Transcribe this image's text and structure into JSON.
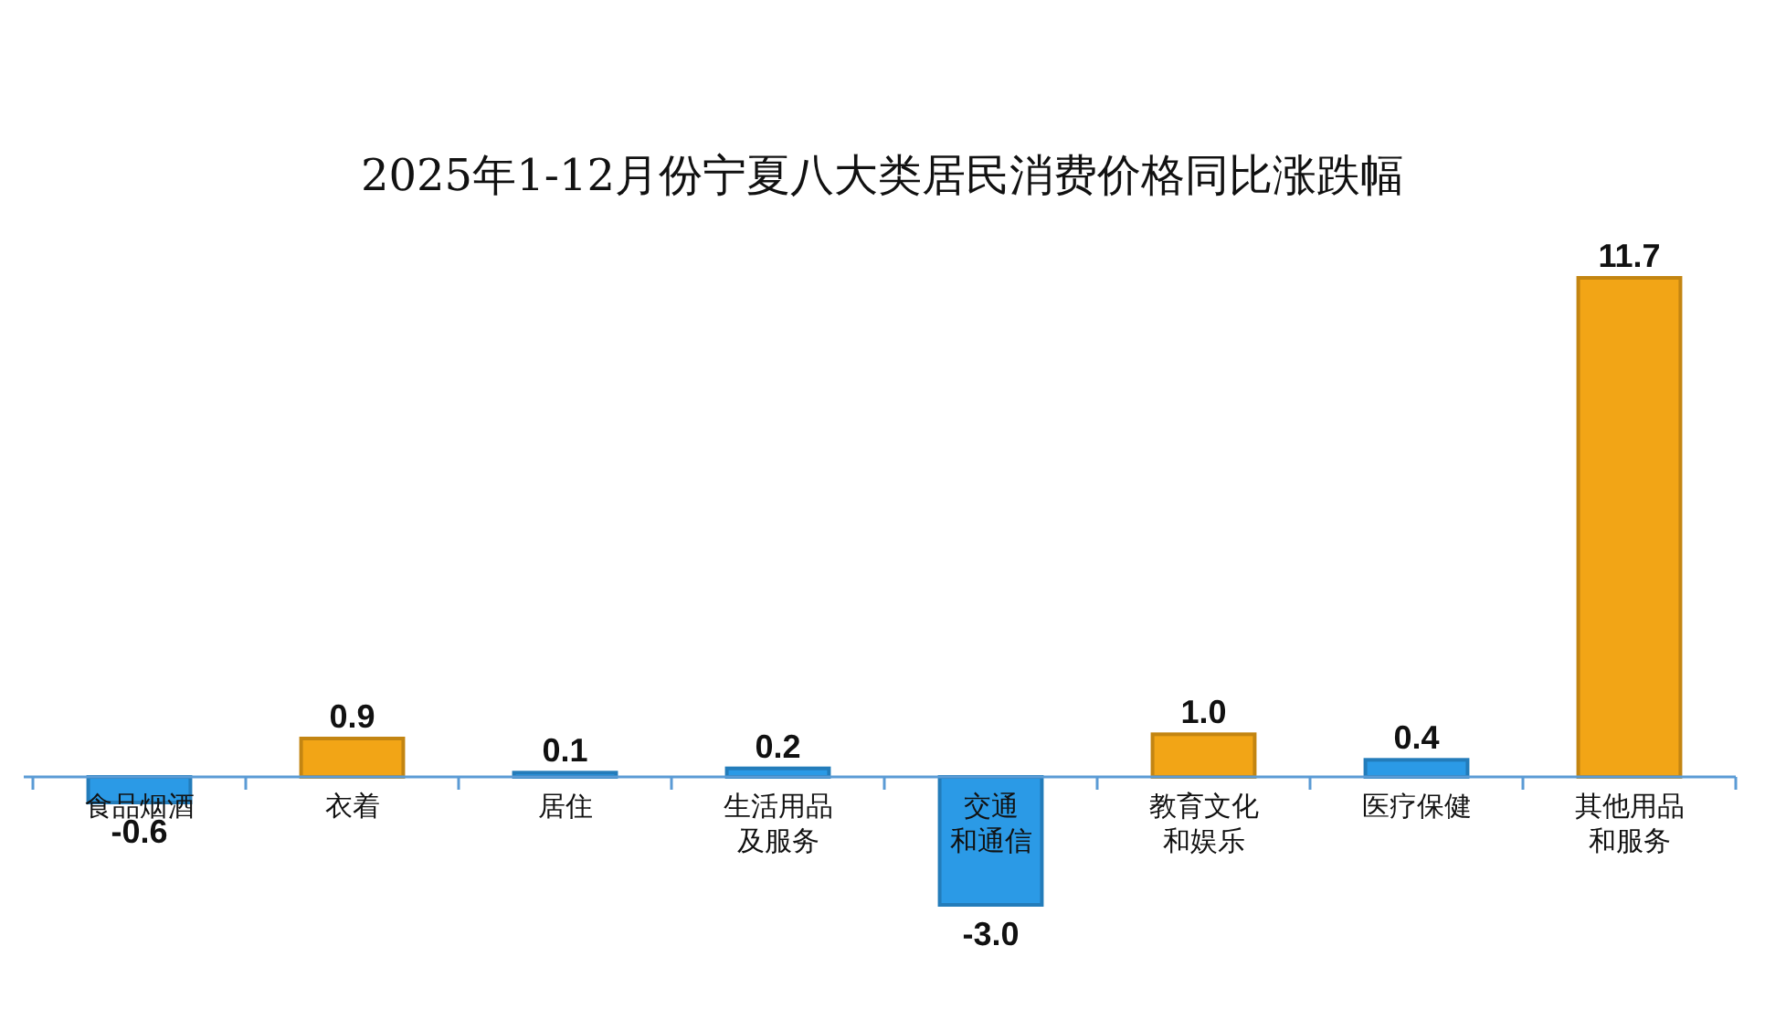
{
  "chart_data": {
    "type": "bar",
    "title": "2025年1-12月份宁夏八大类居民消费价格同比涨跌幅",
    "categories": [
      "食品烟酒",
      "衣着",
      "居住",
      "生活用品及服务",
      "交通和通信",
      "教育文化和娱乐",
      "医疗保健",
      "其他用品和服务"
    ],
    "values": [
      -0.6,
      0.9,
      0.1,
      0.2,
      -3.0,
      1.0,
      0.4,
      11.7
    ],
    "value_labels": [
      "-0.6",
      "0.9",
      "0.1",
      "0.2",
      "-3.0",
      "1.0",
      "0.4",
      "11.7"
    ],
    "colors": [
      "#2b9ae6",
      "#f2a516",
      "#2b9ae6",
      "#2b9ae6",
      "#2b9ae6",
      "#f2a516",
      "#2b9ae6",
      "#f2a516"
    ]
  }
}
